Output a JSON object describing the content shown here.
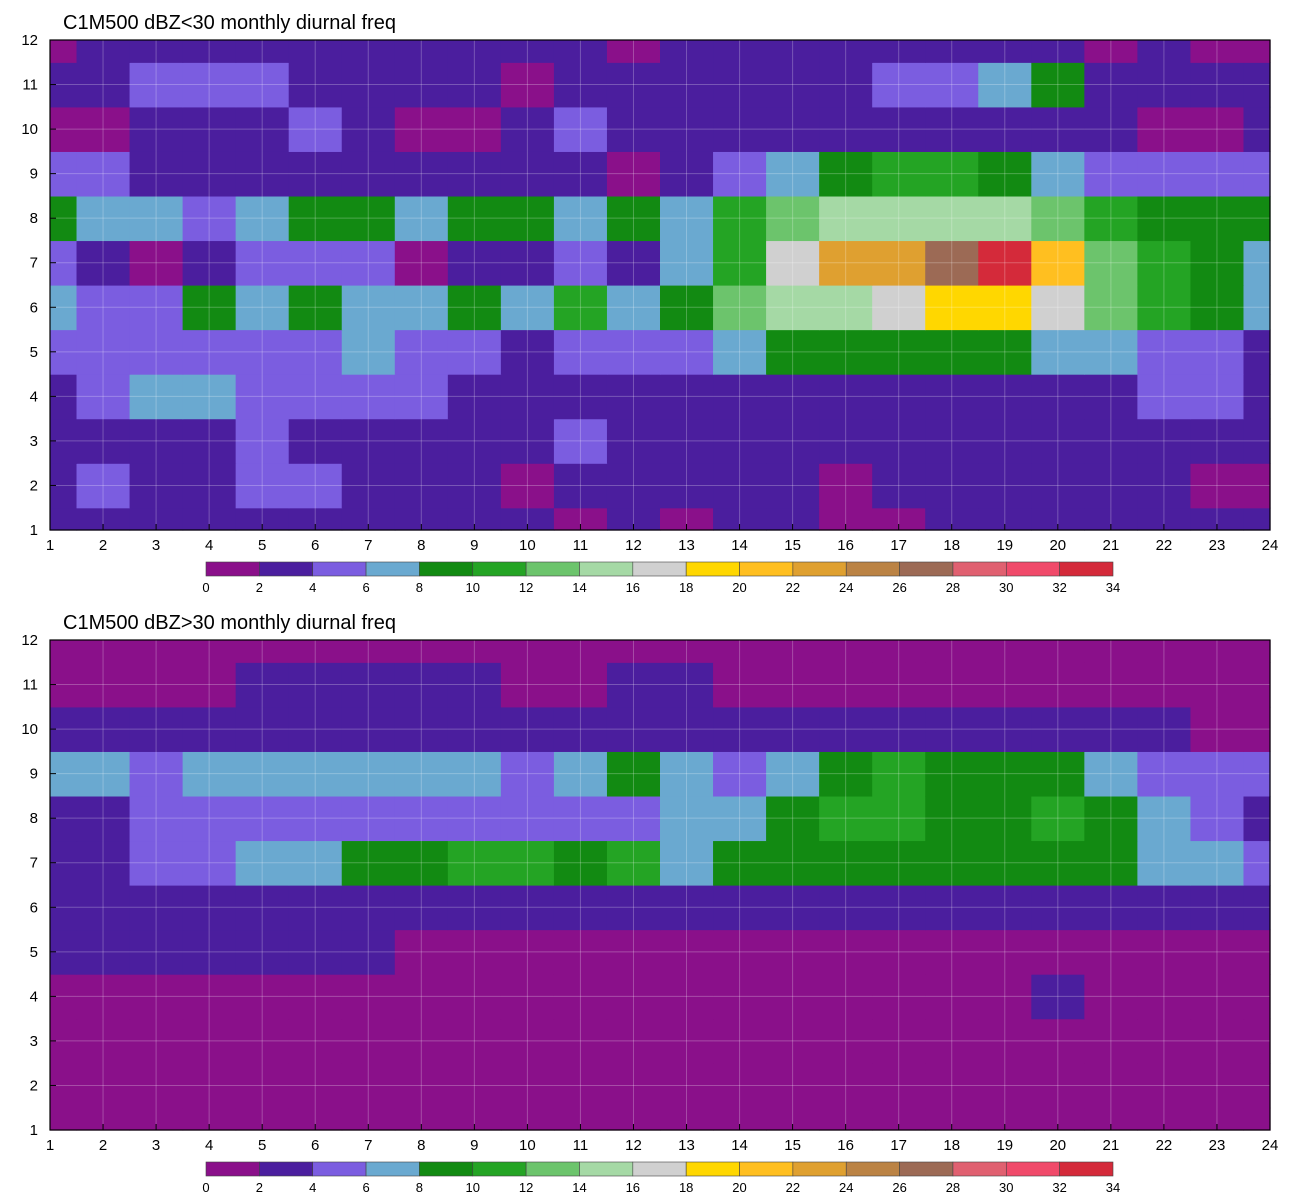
{
  "chart_data": [
    {
      "type": "heatmap",
      "title": "C1M500 dBZ<30 monthly diurnal freq",
      "xlabel": "",
      "ylabel": "",
      "xlim": [
        1,
        24
      ],
      "ylim": [
        1,
        12
      ],
      "x_ticks": [
        1,
        2,
        3,
        4,
        5,
        6,
        7,
        8,
        9,
        10,
        11,
        12,
        13,
        14,
        15,
        16,
        17,
        18,
        19,
        20,
        21,
        22,
        23,
        24
      ],
      "y_ticks": [
        1,
        2,
        3,
        4,
        5,
        6,
        7,
        8,
        9,
        10,
        11,
        12
      ],
      "grid": true,
      "colorbar_levels": [
        0,
        2,
        4,
        6,
        8,
        10,
        12,
        14,
        16,
        18,
        20,
        22,
        24,
        26,
        28,
        30,
        32,
        34
      ],
      "colorbar_colors": [
        "#8a108a",
        "#4b1e9e",
        "#7b5de0",
        "#6aa9d0",
        "#128a12",
        "#24a424",
        "#6cc46c",
        "#a5d9a5",
        "#d0d0d0",
        "#ffd700",
        "#ffbf20",
        "#dfa030",
        "#bb8344",
        "#9c6a55",
        "#e06070",
        "#f04a6a",
        "#d42a3a"
      ],
      "grid_values": [
        [
          2,
          2,
          3,
          2,
          2,
          2,
          3,
          3,
          3,
          3,
          1,
          2,
          1,
          2,
          2,
          1,
          1,
          3,
          2,
          3,
          2,
          2,
          3,
          3
        ],
        [
          3,
          4,
          3,
          2,
          4,
          4,
          3,
          3,
          3,
          1,
          2,
          3,
          2,
          2,
          3,
          1,
          2,
          3,
          3,
          3,
          2,
          3,
          1,
          1
        ],
        [
          2,
          3,
          3,
          3,
          4,
          3,
          2,
          2,
          3,
          3,
          5,
          3,
          3,
          3,
          3,
          3,
          3,
          3,
          2,
          3,
          3,
          3,
          3,
          3
        ],
        [
          3,
          5,
          7,
          7,
          5,
          5,
          5,
          4,
          3,
          3,
          3,
          3,
          3,
          3,
          3,
          3,
          3,
          3,
          3,
          3,
          3,
          4,
          4,
          3
        ],
        [
          4,
          5,
          5,
          5,
          5,
          5,
          7,
          5,
          5,
          3,
          4,
          5,
          5,
          7,
          9,
          9,
          9,
          9,
          9,
          7,
          7,
          5,
          4,
          3
        ],
        [
          7,
          5,
          5,
          9,
          6,
          9,
          7,
          7,
          9,
          7,
          11,
          7,
          9,
          12,
          14,
          14,
          16,
          18,
          18,
          16,
          13,
          11,
          9,
          7
        ],
        [
          5,
          3,
          1,
          3,
          5,
          5,
          5,
          1,
          3,
          3,
          5,
          3,
          7,
          10,
          17,
          22,
          23,
          26,
          32,
          21,
          13,
          11,
          9,
          7
        ],
        [
          9,
          7,
          7,
          5,
          7,
          9,
          9,
          7,
          9,
          9,
          7,
          9,
          7,
          11,
          13,
          14,
          15,
          15,
          14,
          13,
          11,
          9,
          9,
          9
        ],
        [
          5,
          5,
          3,
          3,
          3,
          3,
          3,
          3,
          3,
          3,
          3,
          1,
          3,
          5,
          7,
          9,
          11,
          11,
          9,
          7,
          5,
          5,
          5,
          5
        ],
        [
          1,
          1,
          3,
          3,
          3,
          5,
          3,
          1,
          1,
          3,
          5,
          3,
          3,
          3,
          3,
          3,
          3,
          3,
          3,
          3,
          3,
          1,
          1,
          3
        ],
        [
          3,
          3,
          5,
          5,
          5,
          3,
          3,
          3,
          3,
          1,
          3,
          3,
          3,
          3,
          3,
          3,
          5,
          5,
          7,
          9,
          3,
          3,
          3,
          3
        ],
        [
          1,
          3,
          3,
          3,
          3,
          3,
          3,
          3,
          3,
          3,
          3,
          1,
          3,
          3,
          3,
          3,
          3,
          3,
          3,
          3,
          1,
          3,
          1,
          1
        ]
      ]
    },
    {
      "type": "heatmap",
      "title": "C1M500 dBZ>30 monthly diurnal freq",
      "xlabel": "",
      "ylabel": "",
      "xlim": [
        1,
        24
      ],
      "ylim": [
        1,
        12
      ],
      "x_ticks": [
        1,
        2,
        3,
        4,
        5,
        6,
        7,
        8,
        9,
        10,
        11,
        12,
        13,
        14,
        15,
        16,
        17,
        18,
        19,
        20,
        21,
        22,
        23,
        24
      ],
      "y_ticks": [
        1,
        2,
        3,
        4,
        5,
        6,
        7,
        8,
        9,
        10,
        11,
        12
      ],
      "grid": true,
      "colorbar_levels": [
        0,
        2,
        4,
        6,
        8,
        10,
        12,
        14,
        16,
        18,
        20,
        22,
        24,
        26,
        28,
        30,
        32,
        34
      ],
      "colorbar_colors": [
        "#8a108a",
        "#4b1e9e",
        "#7b5de0",
        "#6aa9d0",
        "#128a12",
        "#24a424",
        "#6cc46c",
        "#a5d9a5",
        "#d0d0d0",
        "#ffd700",
        "#ffbf20",
        "#dfa030",
        "#bb8344",
        "#9c6a55",
        "#e06070",
        "#f04a6a",
        "#d42a3a"
      ],
      "grid_values": [
        [
          1,
          1,
          1,
          1,
          1,
          1,
          1,
          1,
          1,
          1,
          1,
          1,
          1,
          1,
          1,
          1,
          1,
          1,
          1,
          1,
          1,
          1,
          1,
          1
        ],
        [
          1,
          1,
          1,
          1,
          1,
          1,
          1,
          1,
          1,
          1,
          1,
          1,
          1,
          1,
          1,
          1,
          1,
          1,
          1,
          1,
          1,
          1,
          1,
          1
        ],
        [
          1,
          1,
          1,
          1,
          1,
          1,
          1,
          1,
          1,
          1,
          1,
          1,
          1,
          1,
          1,
          1,
          1,
          1,
          1,
          1,
          1,
          1,
          1,
          1
        ],
        [
          1,
          1,
          1,
          1,
          1,
          1,
          1,
          1,
          1,
          1,
          1,
          1,
          1,
          1,
          1,
          1,
          1,
          1,
          1,
          3,
          1,
          1,
          1,
          1
        ],
        [
          3,
          3,
          3,
          3,
          3,
          3,
          3,
          1,
          1,
          1,
          1,
          1,
          1,
          1,
          1,
          1,
          1,
          1,
          1,
          1,
          1,
          1,
          1,
          1
        ],
        [
          3,
          3,
          3,
          3,
          3,
          3,
          3,
          3,
          3,
          3,
          3,
          3,
          3,
          3,
          3,
          3,
          3,
          3,
          3,
          3,
          3,
          3,
          3,
          3
        ],
        [
          3,
          3,
          5,
          5,
          7,
          7,
          9,
          9,
          11,
          11,
          9,
          11,
          7,
          9,
          9,
          9,
          9,
          9,
          9,
          9,
          9,
          7,
          7,
          5
        ],
        [
          3,
          3,
          5,
          5,
          5,
          5,
          5,
          5,
          5,
          5,
          5,
          5,
          7,
          7,
          9,
          11,
          11,
          9,
          9,
          11,
          9,
          7,
          5,
          3
        ],
        [
          7,
          7,
          5,
          7,
          7,
          7,
          7,
          7,
          7,
          5,
          7,
          9,
          7,
          5,
          7,
          9,
          11,
          9,
          9,
          9,
          7,
          5,
          5,
          5
        ],
        [
          3,
          3,
          3,
          3,
          3,
          3,
          3,
          3,
          3,
          3,
          3,
          3,
          3,
          3,
          3,
          3,
          3,
          3,
          3,
          3,
          3,
          3,
          1,
          1
        ],
        [
          1,
          1,
          1,
          1,
          3,
          3,
          3,
          3,
          3,
          1,
          1,
          3,
          3,
          1,
          1,
          1,
          1,
          1,
          1,
          1,
          1,
          1,
          1,
          1
        ],
        [
          1,
          1,
          1,
          1,
          1,
          1,
          1,
          1,
          1,
          1,
          1,
          1,
          1,
          1,
          1,
          1,
          1,
          1,
          1,
          1,
          1,
          1,
          1,
          1
        ]
      ]
    }
  ]
}
